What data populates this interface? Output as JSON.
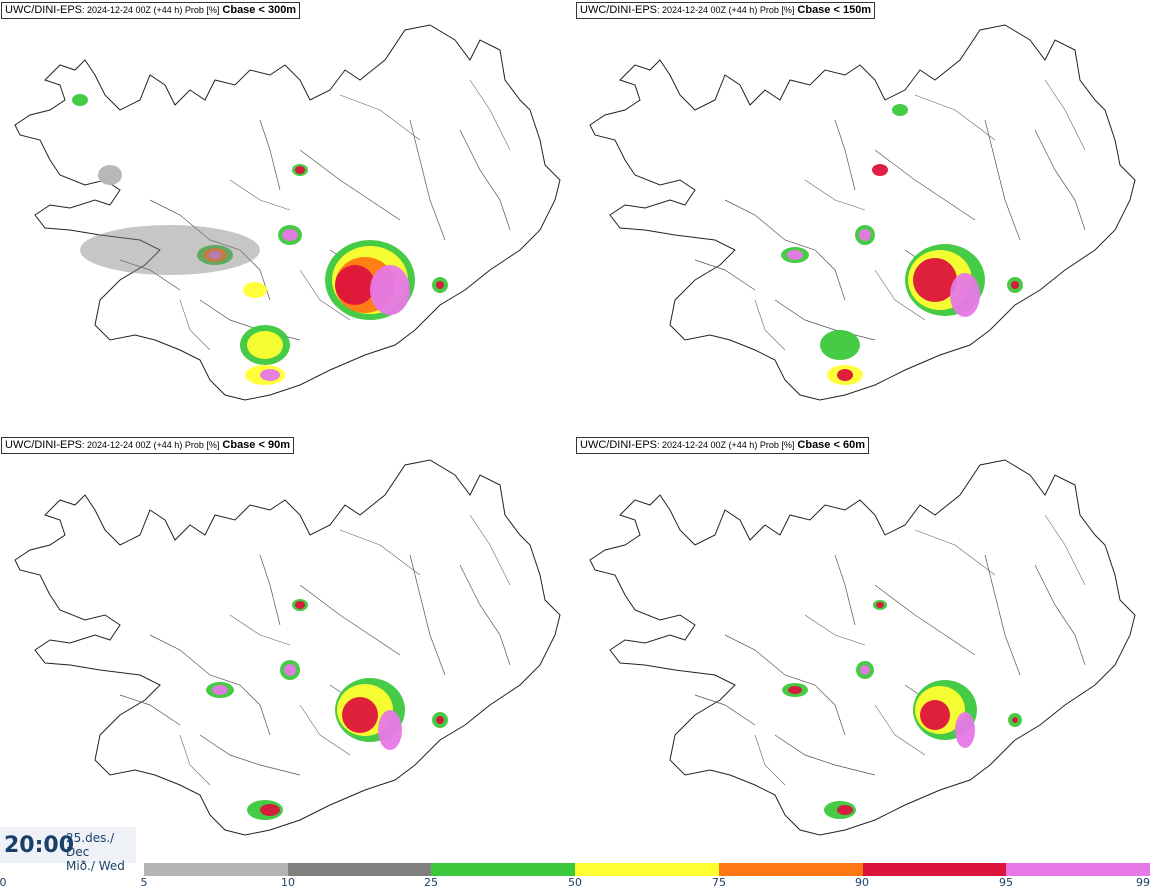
{
  "panels": [
    {
      "model": "UWC/DINI-EPS",
      "meta": ": 2024-12-24 00Z (+44 h) Prob [%]",
      "field": "Cbase < 300m"
    },
    {
      "model": "UWC/DINI-EPS",
      "meta": ": 2024-12-24 00Z (+44 h) Prob [%]",
      "field": "Cbase < 150m"
    },
    {
      "model": "UWC/DINI-EPS",
      "meta": ": 2024-12-24 00Z (+44 h) Prob [%]",
      "field": "Cbase < 90m"
    },
    {
      "model": "UWC/DINI-EPS",
      "meta": ": 2024-12-24 00Z (+44 h) Prob [%]",
      "field": "Cbase < 60m"
    }
  ],
  "time": {
    "clock": "20:00",
    "date_line1": "25.des./ Dec",
    "date_line2": "Mið./ Wed"
  },
  "colorbar": {
    "labels": [
      "0",
      "5",
      "10",
      "25",
      "50",
      "75",
      "90",
      "95",
      "99"
    ],
    "colors": [
      "#b4b4b4",
      "#808080",
      "#3cc83c",
      "#ffff32",
      "#ff7814",
      "#dc143c",
      "#e678e6"
    ]
  }
}
